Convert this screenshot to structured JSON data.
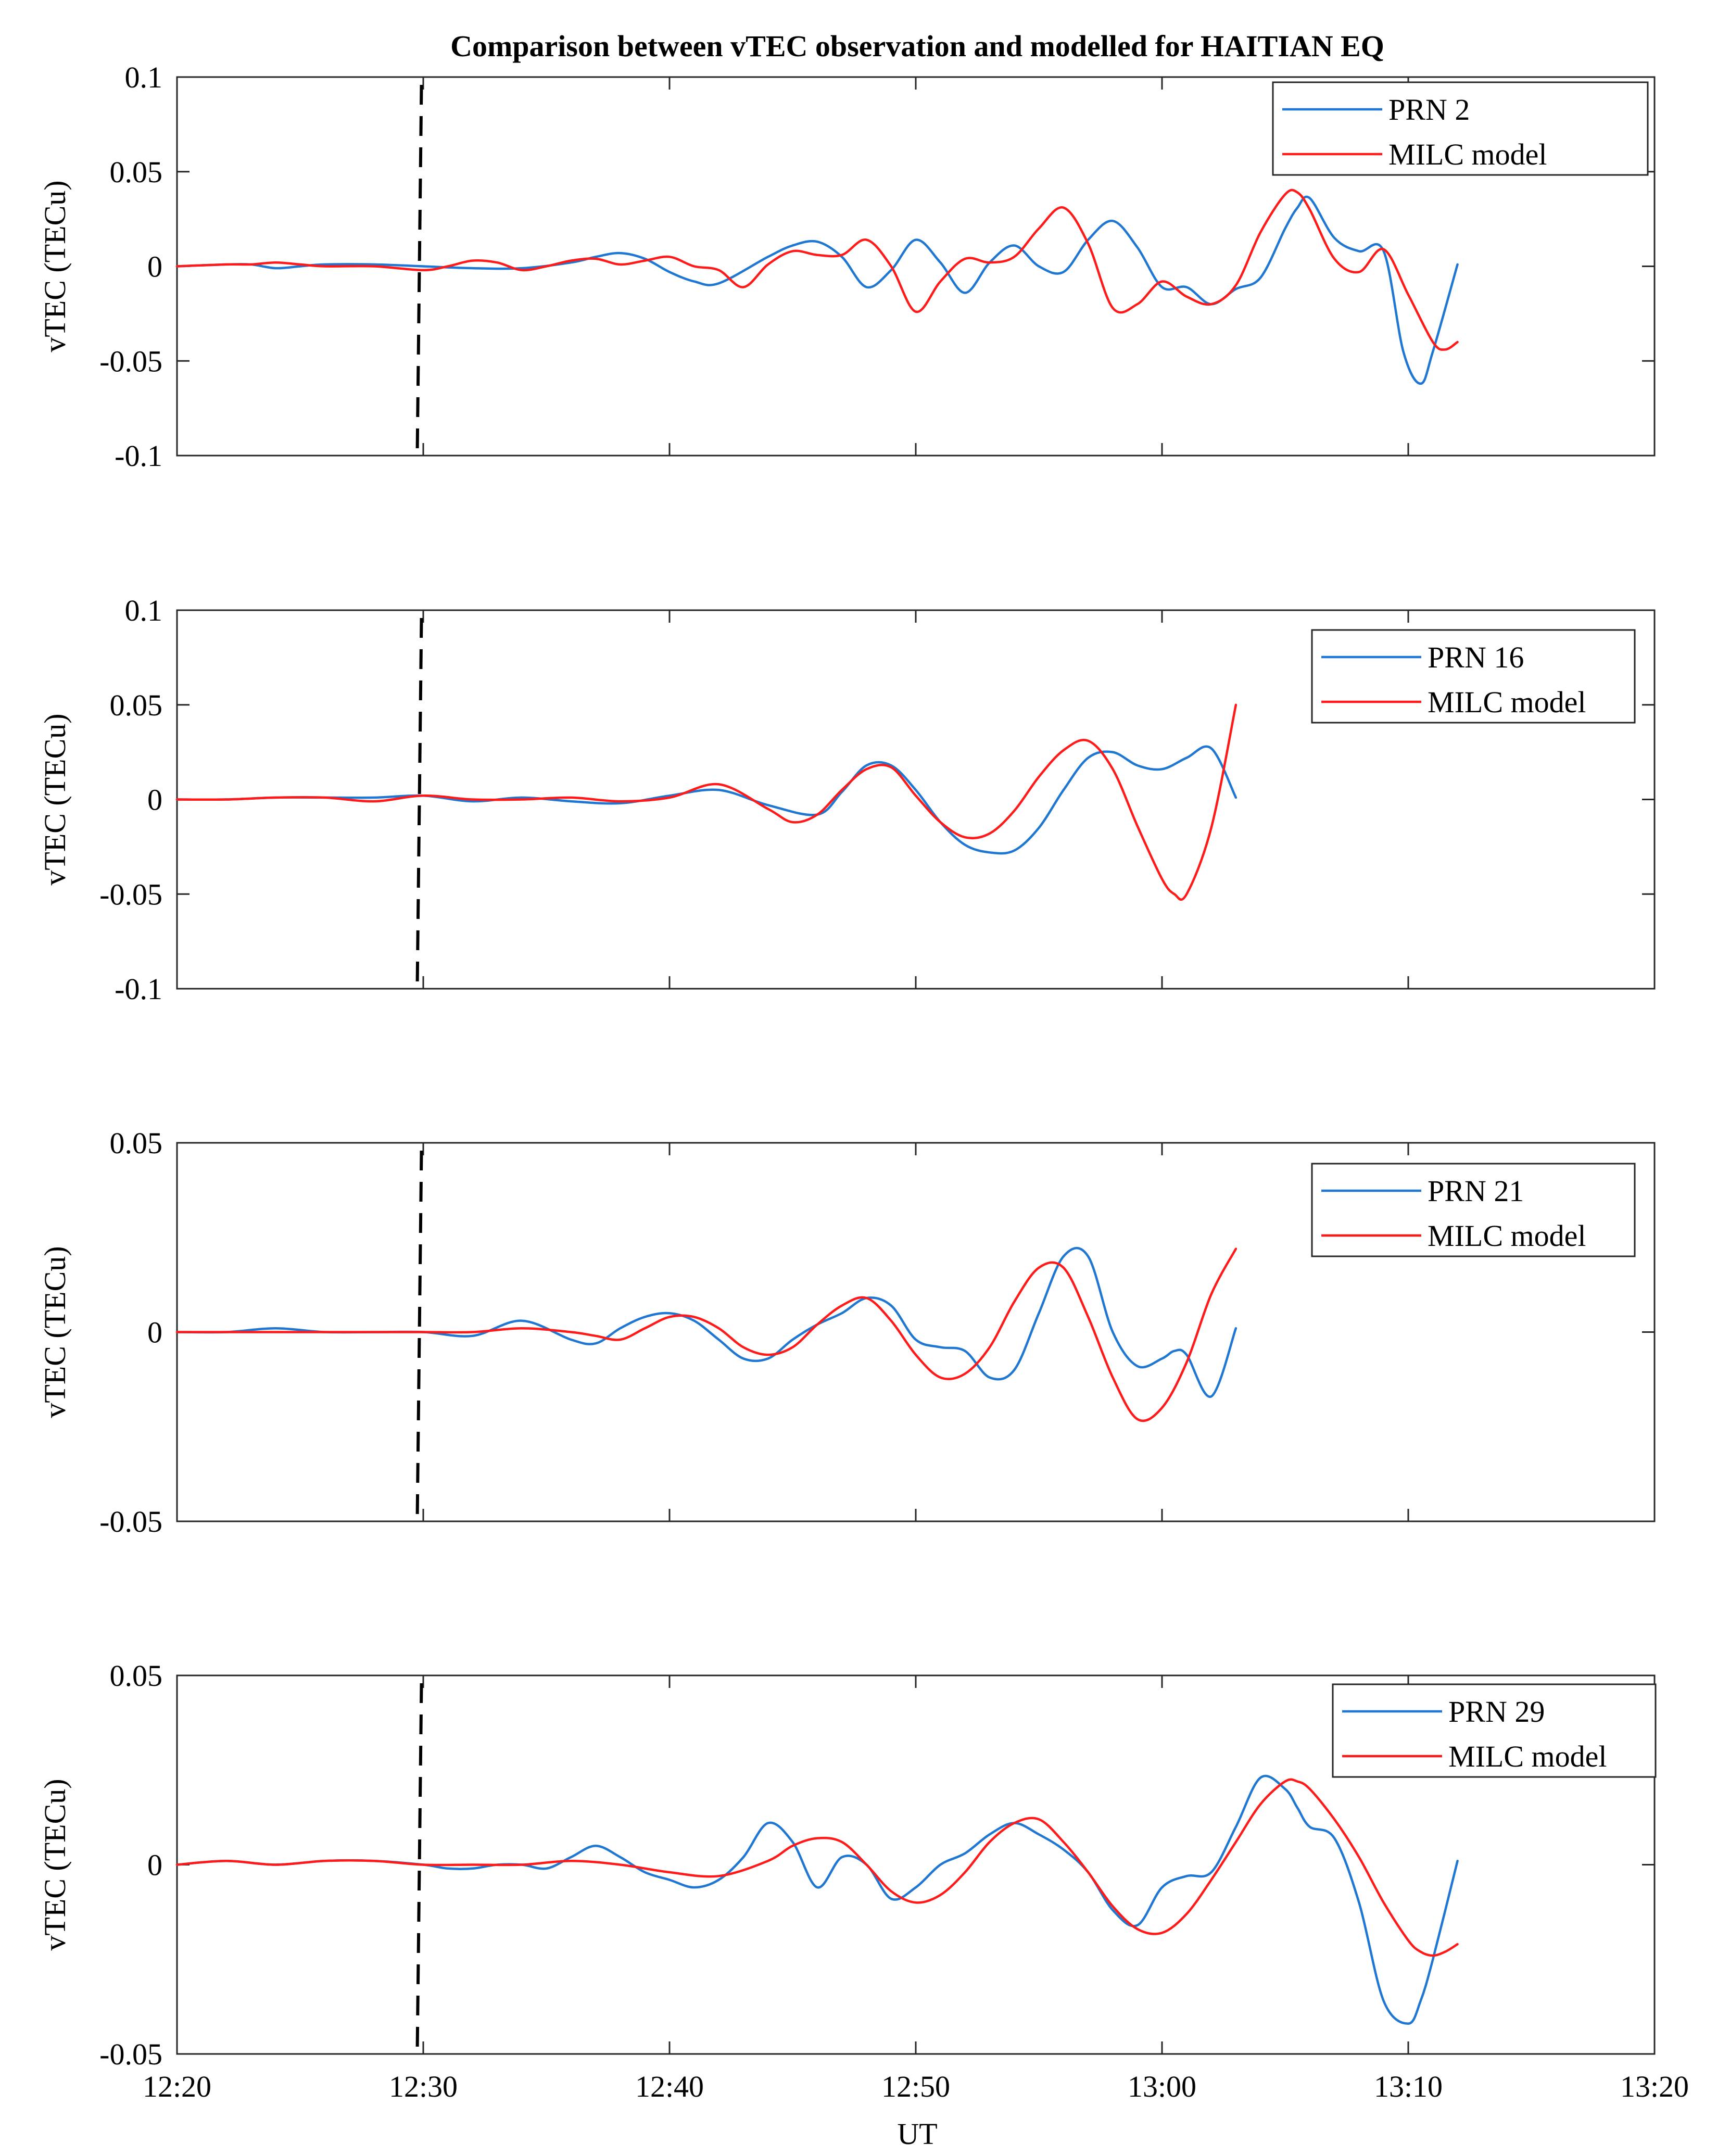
{
  "chart_data": {
    "type": "line",
    "title": "Comparison between vTEC observation and modelled for HAITIAN EQ",
    "xlabel": "UT",
    "x_unit": "minutes since 12:20",
    "xlim": [
      0,
      60
    ],
    "x_ticks": [
      0,
      10,
      20,
      30,
      40,
      50,
      60
    ],
    "x_tick_labels": [
      "12:20",
      "12:30",
      "12:40",
      "12:50",
      "13:00",
      "13:10",
      "13:20"
    ],
    "event_marker_x": 9.8,
    "colors": {
      "observation": "#1f77d2",
      "model": "#ff1a1a",
      "event": "#000000"
    },
    "panels": [
      {
        "ylabel": "vTEC (TECu)",
        "ylim": [
          -0.1,
          0.1
        ],
        "y_ticks": [
          -0.1,
          -0.05,
          0,
          0.05,
          0.1
        ],
        "y_tick_labels": [
          "-0.1",
          "-0.05",
          "0",
          "0.05",
          "0.1"
        ],
        "series": [
          {
            "name": "PRN 2",
            "role": "observation",
            "x": [
              0,
              2,
              3,
              4,
              5,
              6,
              8,
              10,
              12,
              14,
              16,
              17,
              18,
              19,
              20,
              21,
              22,
              24,
              25,
              26,
              27,
              28,
              29,
              30,
              31,
              32,
              33,
              34,
              35,
              36,
              37,
              38,
              39,
              40,
              41,
              42,
              43,
              44,
              45,
              45.5,
              46,
              47,
              48,
              49,
              49.8,
              50.5,
              51,
              52
            ],
            "y": [
              0,
              0.001,
              0.001,
              -0.001,
              0,
              0.001,
              0.001,
              0,
              -0.001,
              -0.001,
              0.002,
              0.005,
              0.007,
              0.004,
              -0.003,
              -0.008,
              -0.009,
              0.005,
              0.011,
              0.013,
              0.005,
              -0.011,
              -0.002,
              0.014,
              0.002,
              -0.014,
              0.002,
              0.011,
              0.0,
              -0.003,
              0.014,
              0.024,
              0.01,
              -0.011,
              -0.011,
              -0.02,
              -0.012,
              -0.006,
              0.02,
              0.031,
              0.036,
              0.015,
              0.008,
              0.008,
              -0.045,
              -0.062,
              -0.045,
              0.001
            ]
          },
          {
            "name": "MILC model",
            "role": "model",
            "x": [
              0,
              2,
              3,
              4,
              5,
              6,
              8,
              10,
              11,
              12,
              13,
              14,
              15,
              16,
              17,
              18,
              19,
              20,
              21,
              22,
              23,
              24,
              25,
              26,
              27,
              28,
              29,
              30,
              31,
              32,
              33,
              34,
              35,
              36,
              37,
              38,
              39,
              40,
              41,
              42,
              43,
              44,
              45,
              45.5,
              46,
              47,
              48,
              49,
              50,
              51,
              51.5,
              52
            ],
            "y": [
              0,
              0.001,
              0.001,
              0.002,
              0.001,
              0,
              0,
              -0.002,
              0.0,
              0.003,
              0.002,
              -0.002,
              0.0,
              0.003,
              0.004,
              0.001,
              0.003,
              0.005,
              0.0,
              -0.002,
              -0.011,
              0.001,
              0.008,
              0.006,
              0.006,
              0.014,
              0.0,
              -0.024,
              -0.008,
              0.004,
              0.002,
              0.005,
              0.02,
              0.031,
              0.012,
              -0.022,
              -0.02,
              -0.008,
              -0.016,
              -0.02,
              -0.01,
              0.018,
              0.038,
              0.039,
              0.03,
              0.004,
              -0.003,
              0.009,
              -0.015,
              -0.04,
              -0.044,
              -0.04
            ]
          }
        ]
      },
      {
        "ylabel": "vTEC (TECu)",
        "ylim": [
          -0.1,
          0.1
        ],
        "y_ticks": [
          -0.1,
          -0.05,
          0,
          0.05,
          0.1
        ],
        "y_tick_labels": [
          "-0.1",
          "-0.05",
          "0",
          "0.05",
          "0.1"
        ],
        "series": [
          {
            "name": "PRN 16",
            "role": "observation",
            "x": [
              0,
              2,
              4,
              6,
              8,
              10,
              12,
              14,
              16,
              18,
              20,
              22,
              24,
              26,
              27,
              28,
              29,
              30,
              31,
              32,
              33,
              34,
              35,
              36,
              37,
              38,
              39,
              40,
              41,
              42,
              43
            ],
            "y": [
              0,
              0,
              0.001,
              0.001,
              0.001,
              0.002,
              -0.001,
              0.001,
              -0.001,
              -0.002,
              0.002,
              0.005,
              -0.003,
              -0.008,
              0.004,
              0.018,
              0.018,
              0.005,
              -0.012,
              -0.024,
              -0.028,
              -0.027,
              -0.015,
              0.005,
              0.022,
              0.025,
              0.018,
              0.016,
              0.022,
              0.027,
              0.001
            ]
          },
          {
            "name": "MILC model",
            "role": "model",
            "x": [
              0,
              2,
              4,
              6,
              8,
              10,
              12,
              14,
              16,
              18,
              20,
              22,
              24,
              25,
              26,
              27,
              28,
              29,
              30,
              31,
              32,
              33,
              34,
              35,
              36,
              37,
              38,
              39,
              40,
              40.5,
              41,
              42,
              43
            ],
            "y": [
              0,
              0,
              0.001,
              0.001,
              -0.001,
              0.002,
              0.0,
              0.0,
              0.001,
              -0.001,
              0.001,
              0.008,
              -0.005,
              -0.012,
              -0.008,
              0.005,
              0.016,
              0.017,
              0.002,
              -0.012,
              -0.02,
              -0.018,
              -0.006,
              0.012,
              0.026,
              0.031,
              0.016,
              -0.014,
              -0.042,
              -0.05,
              -0.05,
              -0.015,
              0.05
            ]
          }
        ]
      },
      {
        "ylabel": "vTEC (TECu)",
        "ylim": [
          -0.05,
          0.05
        ],
        "y_ticks": [
          -0.05,
          0,
          0.05
        ],
        "y_tick_labels": [
          "-0.05",
          "0",
          "0.05"
        ],
        "series": [
          {
            "name": "PRN 21",
            "role": "observation",
            "x": [
              0,
              2,
              4,
              6,
              8,
              10,
              12,
              14,
              16,
              17,
              18,
              19,
              20,
              21,
              22,
              23,
              24,
              25,
              26,
              27,
              28,
              29,
              30,
              31,
              32,
              33,
              34,
              35,
              36,
              37,
              38,
              39,
              40,
              40.5,
              41,
              42,
              43
            ],
            "y": [
              0,
              0,
              0.001,
              0,
              0,
              0.0,
              -0.001,
              0.003,
              -0.002,
              -0.003,
              0.001,
              0.004,
              0.005,
              0.003,
              -0.002,
              -0.007,
              -0.007,
              -0.002,
              0.002,
              0.005,
              0.009,
              0.007,
              -0.002,
              -0.004,
              -0.005,
              -0.012,
              -0.01,
              0.005,
              0.02,
              0.02,
              0.0,
              -0.009,
              -0.007,
              -0.005,
              -0.006,
              -0.017,
              0.001
            ]
          },
          {
            "name": "MILC model",
            "role": "model",
            "x": [
              0,
              2,
              4,
              6,
              8,
              10,
              12,
              14,
              16,
              17,
              18,
              19,
              20,
              21,
              22,
              23,
              24,
              25,
              26,
              27,
              28,
              29,
              30,
              31,
              32,
              33,
              34,
              35,
              36,
              37,
              38,
              39,
              40,
              41,
              42,
              43
            ],
            "y": [
              0,
              0,
              0,
              0,
              0,
              0.0,
              0.0,
              0.001,
              0.0,
              -0.001,
              -0.002,
              0.001,
              0.004,
              0.004,
              0.001,
              -0.004,
              -0.006,
              -0.004,
              0.002,
              0.007,
              0.009,
              0.003,
              -0.006,
              -0.012,
              -0.011,
              -0.004,
              0.008,
              0.017,
              0.017,
              0.004,
              -0.012,
              -0.023,
              -0.02,
              -0.008,
              0.01,
              0.022
            ]
          }
        ]
      },
      {
        "ylabel": "vTEC (TECu)",
        "ylim": [
          -0.05,
          0.05
        ],
        "y_ticks": [
          -0.05,
          0,
          0.05
        ],
        "y_tick_labels": [
          "-0.05",
          "0",
          "0.05"
        ],
        "series": [
          {
            "name": "PRN 29",
            "role": "observation",
            "x": [
              0,
              2,
              4,
              6,
              8,
              10,
              11,
              12,
              13,
              14,
              15,
              16,
              17,
              18,
              19,
              20,
              21,
              22,
              23,
              24,
              25,
              26,
              27,
              28,
              29,
              30,
              31,
              32,
              33,
              34,
              35,
              36,
              37,
              38,
              39,
              40,
              41,
              42,
              43,
              44,
              45,
              45.5,
              46,
              47,
              48,
              49,
              50,
              50.5,
              51,
              52
            ],
            "y": [
              0,
              0.001,
              0,
              0.001,
              0.001,
              0,
              -0.001,
              -0.001,
              0.0,
              0.0,
              -0.001,
              0.002,
              0.005,
              0.002,
              -0.002,
              -0.004,
              -0.006,
              -0.004,
              0.002,
              0.011,
              0.006,
              -0.006,
              0.002,
              0.0,
              -0.009,
              -0.006,
              0.0,
              0.003,
              0.008,
              0.011,
              0.008,
              0.004,
              -0.002,
              -0.012,
              -0.016,
              -0.006,
              -0.003,
              -0.002,
              0.01,
              0.023,
              0.02,
              0.015,
              0.01,
              0.007,
              -0.01,
              -0.036,
              -0.042,
              -0.036,
              -0.025,
              0.001
            ]
          },
          {
            "name": "MILC model",
            "role": "model",
            "x": [
              0,
              2,
              4,
              6,
              8,
              10,
              12,
              14,
              16,
              18,
              20,
              22,
              24,
              25,
              26,
              27,
              28,
              29,
              30,
              31,
              32,
              33,
              34,
              35,
              36,
              37,
              38,
              39,
              40,
              41,
              42,
              43,
              44,
              45,
              45.5,
              46,
              47,
              48,
              49,
              50,
              50.5,
              51,
              51.5,
              52
            ],
            "y": [
              0,
              0.001,
              0,
              0.001,
              0.001,
              0.0,
              0,
              0,
              0.001,
              0,
              -0.002,
              -0.003,
              0.001,
              0.005,
              0.007,
              0.006,
              0.0,
              -0.007,
              -0.01,
              -0.008,
              -0.002,
              0.006,
              0.011,
              0.012,
              0.006,
              -0.002,
              -0.011,
              -0.017,
              -0.018,
              -0.013,
              -0.004,
              0.006,
              0.016,
              0.022,
              0.022,
              0.02,
              0.012,
              0.002,
              -0.01,
              -0.02,
              -0.023,
              -0.024,
              -0.023,
              -0.021
            ]
          }
        ]
      }
    ]
  }
}
